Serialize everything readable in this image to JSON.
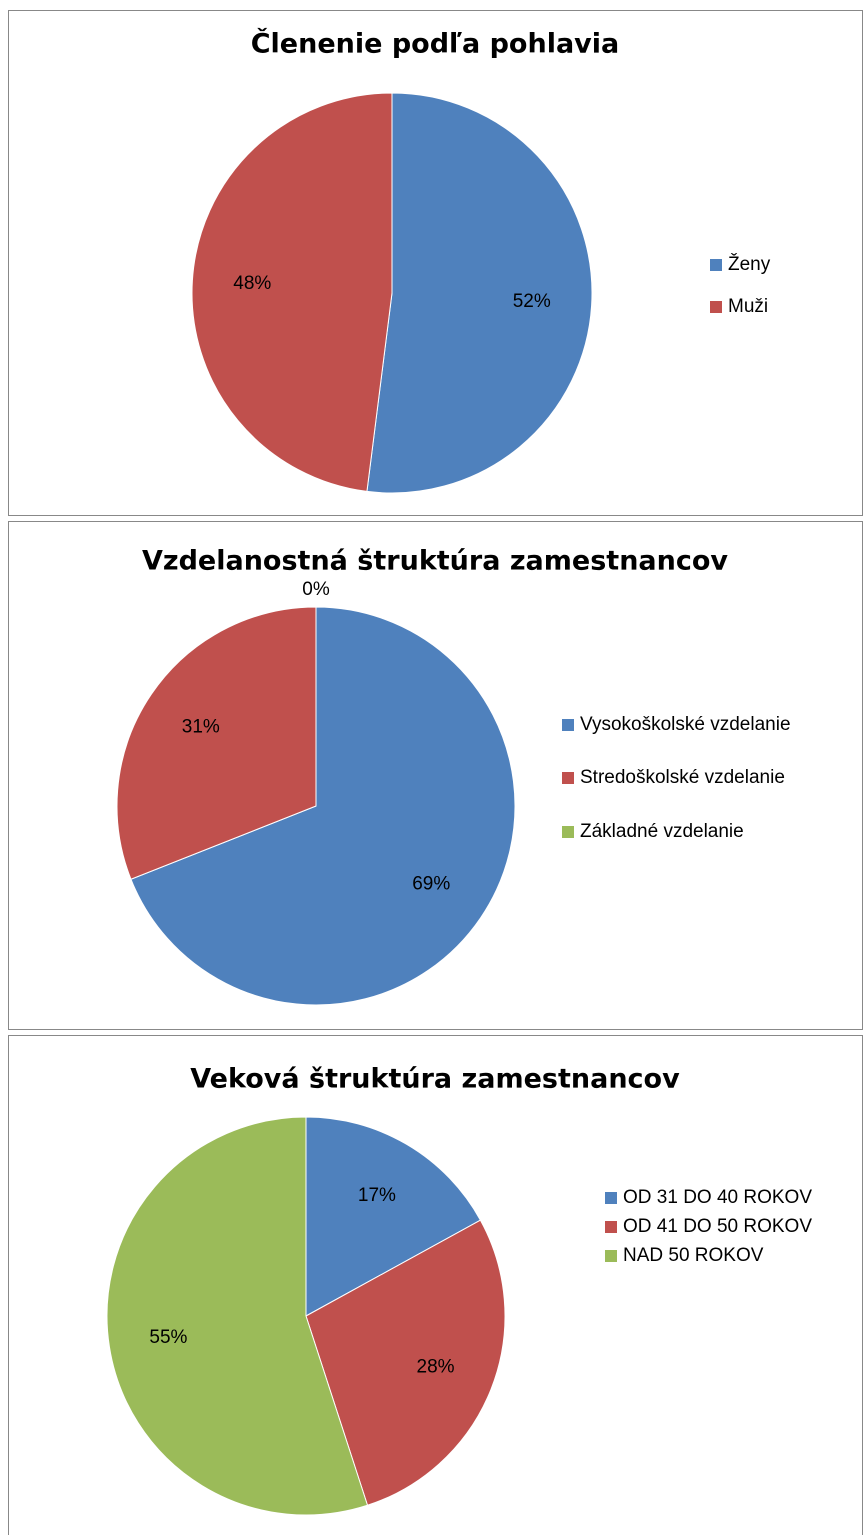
{
  "chart_data": [
    {
      "type": "pie",
      "title": "Členenie podľa pohlavia",
      "categories": [
        "Ženy",
        "Muži"
      ],
      "values": [
        52,
        48
      ],
      "value_labels": [
        "52%",
        "48%"
      ],
      "colors": [
        "#4f81bd",
        "#c0504d"
      ]
    },
    {
      "type": "pie",
      "title": "Vzdelanostná štruktúra zamestnancov",
      "categories": [
        "Vysokoškolské vzdelanie",
        "Stredoškolské vzdelanie",
        "Základné vzdelanie"
      ],
      "values": [
        69,
        31,
        0
      ],
      "value_labels": [
        "69%",
        "31%",
        "0%"
      ],
      "colors": [
        "#4f81bd",
        "#c0504d",
        "#9bbb59"
      ]
    },
    {
      "type": "pie",
      "title": "Veková štruktúra zamestnancov",
      "categories": [
        "OD 31 DO 40 ROKOV",
        "OD 41 DO 50 ROKOV",
        "NAD 50 ROKOV"
      ],
      "values": [
        17,
        28,
        55
      ],
      "value_labels": [
        "17%",
        "28%",
        "55%"
      ],
      "colors": [
        "#4f81bd",
        "#c0504d",
        "#9bbb59"
      ]
    }
  ]
}
